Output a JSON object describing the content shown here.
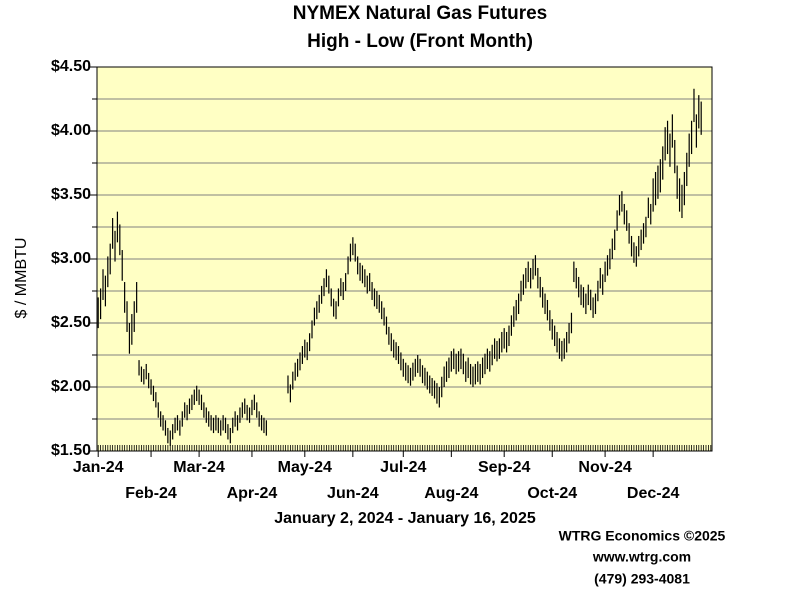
{
  "chart_data": {
    "type": "high-low",
    "title": "NYMEX Natural Gas Futures",
    "subtitle": "High - Low (Front Month)",
    "ylabel": "$ / MMBTU",
    "xlabel": "January 2, 2024 - January 16, 2025",
    "credits": [
      "WTRG Economics ©2025",
      "www.wtrg.com",
      "(479) 293-4081"
    ],
    "color": "#000000",
    "plot_background": "#ffffc4",
    "grid": true,
    "ylim": [
      1.5,
      4.5
    ],
    "yticks": [
      {
        "value": 1.5,
        "label": "$1.50"
      },
      {
        "value": 2.0,
        "label": "$2.00"
      },
      {
        "value": 2.5,
        "label": "$2.50"
      },
      {
        "value": 3.0,
        "label": "$3.00"
      },
      {
        "value": 3.5,
        "label": "$3.50"
      },
      {
        "value": 4.0,
        "label": "$4.00"
      },
      {
        "value": 4.5,
        "label": "$4.50"
      }
    ],
    "minor_yticks": [
      1.75,
      2.25,
      2.75,
      3.25,
      3.75,
      4.25
    ],
    "categories": [
      "Jan-24",
      null,
      null,
      null,
      null,
      null,
      null,
      null,
      null,
      null,
      null,
      null,
      null,
      null,
      null,
      null,
      null,
      null,
      null,
      null,
      null,
      null,
      "Feb-24",
      null,
      null,
      null,
      null,
      null,
      null,
      null,
      null,
      null,
      null,
      null,
      null,
      null,
      null,
      null,
      null,
      null,
      null,
      null,
      "Mar-24",
      null,
      null,
      null,
      null,
      null,
      null,
      null,
      null,
      null,
      null,
      null,
      null,
      null,
      null,
      null,
      null,
      null,
      null,
      null,
      null,
      null,
      "Apr-24",
      null,
      null,
      null,
      null,
      null,
      null,
      null,
      null,
      null,
      null,
      null,
      null,
      null,
      null,
      null,
      null,
      null,
      null,
      null,
      null,
      null,
      "May-24",
      null,
      null,
      null,
      null,
      null,
      null,
      null,
      null,
      null,
      null,
      null,
      null,
      null,
      null,
      null,
      null,
      null,
      null,
      null,
      "Jun-24",
      null,
      null,
      null,
      null,
      null,
      null,
      null,
      null,
      null,
      null,
      null,
      null,
      null,
      null,
      null,
      null,
      null,
      null,
      null,
      null,
      "Jul-24",
      null,
      null,
      null,
      null,
      null,
      null,
      null,
      null,
      null,
      null,
      null,
      null,
      null,
      null,
      null,
      null,
      null,
      null,
      null,
      "Aug-24",
      null,
      null,
      null,
      null,
      null,
      null,
      null,
      null,
      null,
      null,
      null,
      null,
      null,
      null,
      null,
      null,
      null,
      null,
      null,
      null,
      null,
      "Sep-24",
      null,
      null,
      null,
      null,
      null,
      null,
      null,
      null,
      null,
      null,
      null,
      null,
      null,
      null,
      null,
      null,
      null,
      null,
      null,
      "Oct-24",
      null,
      null,
      null,
      null,
      null,
      null,
      null,
      null,
      null,
      null,
      null,
      null,
      null,
      null,
      null,
      null,
      null,
      null,
      null,
      null,
      null,
      "Nov-24",
      null,
      null,
      null,
      null,
      null,
      null,
      null,
      null,
      null,
      null,
      null,
      null,
      null,
      null,
      null,
      null,
      null,
      null,
      null,
      "Dec-24",
      null,
      null,
      null,
      null,
      null,
      null,
      null,
      null,
      null,
      null,
      null,
      null,
      null,
      null,
      null,
      null,
      null,
      null,
      null,
      null,
      null,
      null,
      null,
      null
    ],
    "high": [
      2.7,
      2.77,
      2.92,
      2.87,
      3.02,
      3.12,
      3.32,
      3.22,
      3.37,
      3.27,
      3.07,
      2.82,
      2.67,
      2.5,
      2.57,
      2.67,
      2.82,
      2.21,
      2.16,
      2.14,
      2.18,
      2.11,
      2.06,
      2.01,
      1.96,
      1.88,
      1.81,
      1.78,
      1.74,
      1.68,
      1.66,
      1.71,
      1.76,
      1.78,
      1.74,
      1.81,
      1.88,
      1.86,
      1.91,
      1.94,
      1.98,
      2.01,
      1.98,
      1.94,
      1.88,
      1.84,
      1.81,
      1.78,
      1.76,
      1.78,
      1.76,
      1.74,
      1.78,
      1.76,
      1.71,
      1.68,
      1.76,
      1.81,
      1.78,
      1.84,
      1.88,
      1.91,
      1.86,
      1.84,
      1.9,
      1.94,
      1.88,
      1.81,
      1.78,
      1.76,
      1.74,
      null,
      null,
      null,
      null,
      null,
      null,
      null,
      null,
      2.09,
      2.02,
      2.12,
      2.19,
      2.22,
      2.27,
      2.32,
      2.37,
      2.35,
      2.42,
      2.52,
      2.62,
      2.67,
      2.72,
      2.79,
      2.85,
      2.92,
      2.87,
      2.77,
      2.69,
      2.67,
      2.77,
      2.85,
      2.82,
      2.89,
      3.02,
      3.12,
      3.17,
      3.12,
      3.02,
      2.97,
      2.95,
      2.92,
      2.87,
      2.89,
      2.82,
      2.77,
      2.75,
      2.72,
      2.67,
      2.62,
      2.55,
      2.47,
      2.42,
      2.37,
      2.35,
      2.32,
      2.27,
      2.22,
      2.19,
      2.17,
      2.15,
      2.19,
      2.22,
      2.25,
      2.22,
      2.17,
      2.15,
      2.12,
      2.09,
      2.07,
      2.05,
      2.03,
      2.0,
      2.08,
      2.16,
      2.2,
      2.23,
      2.28,
      2.3,
      2.26,
      2.28,
      2.3,
      2.26,
      2.2,
      2.23,
      2.18,
      2.16,
      2.18,
      2.2,
      2.18,
      2.23,
      2.26,
      2.3,
      2.28,
      2.33,
      2.38,
      2.36,
      2.38,
      2.43,
      2.46,
      2.43,
      2.48,
      2.56,
      2.63,
      2.68,
      2.73,
      2.83,
      2.88,
      2.93,
      2.98,
      2.93,
      3.0,
      3.03,
      2.93,
      2.86,
      2.78,
      2.73,
      2.68,
      2.6,
      2.53,
      2.48,
      2.43,
      2.38,
      2.36,
      2.38,
      2.43,
      2.5,
      2.58,
      2.98,
      2.93,
      2.86,
      2.8,
      2.78,
      2.73,
      2.8,
      2.76,
      2.7,
      2.73,
      2.83,
      2.93,
      2.88,
      2.98,
      3.03,
      3.08,
      3.16,
      3.23,
      3.38,
      3.5,
      3.53,
      3.43,
      3.38,
      3.28,
      3.18,
      3.13,
      3.1,
      3.18,
      3.23,
      3.28,
      3.33,
      3.48,
      3.43,
      3.63,
      3.68,
      3.73,
      3.78,
      3.88,
      4.03,
      4.08,
      3.98,
      4.13,
      3.93,
      3.73,
      3.63,
      3.58,
      3.68,
      3.83,
      3.98,
      4.08,
      4.33,
      4.13,
      4.28,
      4.23,
      null,
      null,
      null,
      null
    ],
    "low": [
      2.46,
      2.53,
      2.68,
      2.63,
      2.78,
      2.88,
      3.08,
      2.98,
      3.13,
      3.03,
      2.83,
      2.58,
      2.43,
      2.26,
      2.33,
      2.43,
      2.58,
      2.09,
      2.04,
      2.02,
      2.06,
      1.99,
      1.94,
      1.89,
      1.84,
      1.76,
      1.69,
      1.66,
      1.62,
      1.56,
      1.54,
      1.59,
      1.64,
      1.66,
      1.62,
      1.69,
      1.76,
      1.74,
      1.79,
      1.82,
      1.86,
      1.89,
      1.86,
      1.82,
      1.76,
      1.72,
      1.69,
      1.66,
      1.64,
      1.66,
      1.64,
      1.62,
      1.66,
      1.64,
      1.59,
      1.56,
      1.64,
      1.69,
      1.66,
      1.72,
      1.76,
      1.79,
      1.74,
      1.72,
      1.78,
      1.82,
      1.76,
      1.69,
      1.66,
      1.64,
      1.62,
      null,
      null,
      null,
      null,
      null,
      null,
      null,
      null,
      1.95,
      1.88,
      1.98,
      2.05,
      2.08,
      2.13,
      2.18,
      2.23,
      2.21,
      2.28,
      2.38,
      2.48,
      2.53,
      2.58,
      2.65,
      2.71,
      2.78,
      2.73,
      2.63,
      2.55,
      2.53,
      2.63,
      2.71,
      2.68,
      2.75,
      2.88,
      2.98,
      3.03,
      2.98,
      2.88,
      2.83,
      2.81,
      2.78,
      2.73,
      2.75,
      2.68,
      2.63,
      2.61,
      2.58,
      2.53,
      2.48,
      2.41,
      2.33,
      2.28,
      2.23,
      2.21,
      2.18,
      2.13,
      2.08,
      2.05,
      2.03,
      2.01,
      2.05,
      2.08,
      2.11,
      2.08,
      2.03,
      2.01,
      1.98,
      1.95,
      1.93,
      1.91,
      1.87,
      1.84,
      1.92,
      2.0,
      2.04,
      2.07,
      2.12,
      2.14,
      2.1,
      2.12,
      2.14,
      2.1,
      2.04,
      2.07,
      2.02,
      2.0,
      2.02,
      2.04,
      2.02,
      2.07,
      2.1,
      2.14,
      2.12,
      2.17,
      2.22,
      2.2,
      2.22,
      2.27,
      2.3,
      2.27,
      2.32,
      2.4,
      2.47,
      2.52,
      2.57,
      2.67,
      2.72,
      2.77,
      2.82,
      2.77,
      2.84,
      2.87,
      2.77,
      2.7,
      2.62,
      2.57,
      2.52,
      2.44,
      2.37,
      2.32,
      2.27,
      2.22,
      2.2,
      2.22,
      2.27,
      2.34,
      2.42,
      2.82,
      2.77,
      2.7,
      2.64,
      2.62,
      2.57,
      2.64,
      2.6,
      2.54,
      2.57,
      2.67,
      2.77,
      2.72,
      2.82,
      2.87,
      2.92,
      3.0,
      3.07,
      3.22,
      3.34,
      3.37,
      3.27,
      3.22,
      3.12,
      3.02,
      2.97,
      2.94,
      3.02,
      3.07,
      3.12,
      3.17,
      3.32,
      3.27,
      3.37,
      3.42,
      3.47,
      3.52,
      3.62,
      3.77,
      3.82,
      3.72,
      3.87,
      3.67,
      3.47,
      3.37,
      3.32,
      3.42,
      3.57,
      3.72,
      3.82,
      4.07,
      3.87,
      4.02,
      3.97,
      null,
      null,
      null,
      null
    ]
  }
}
